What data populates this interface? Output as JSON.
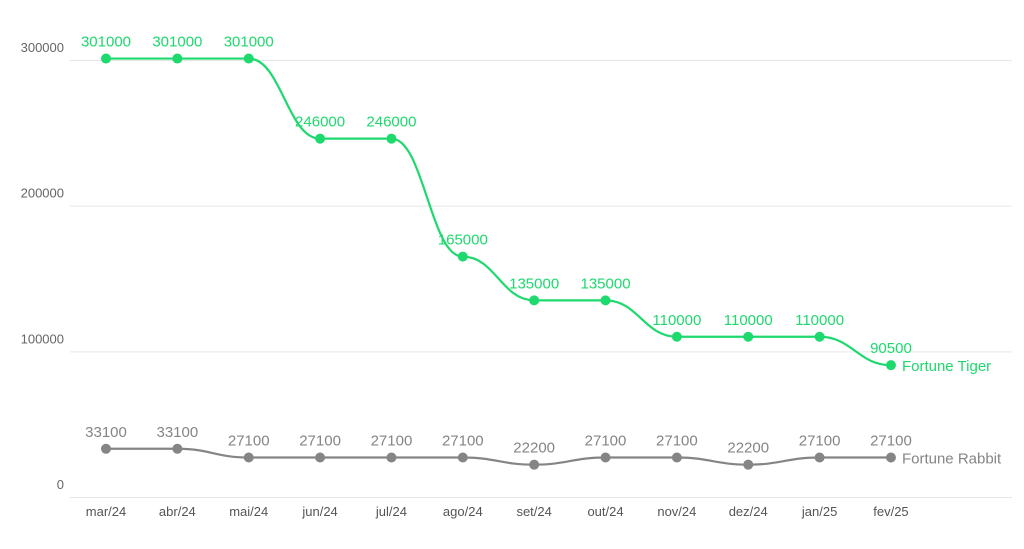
{
  "chart_data": {
    "type": "line",
    "title": "",
    "xlabel": "",
    "ylabel": "",
    "ylim": [
      0,
      300000
    ],
    "yticks": [
      "0",
      "100000",
      "200000",
      "300000"
    ],
    "categories": [
      "mar/24",
      "abr/24",
      "mai/24",
      "jun/24",
      "jul/24",
      "ago/24",
      "set/24",
      "out/24",
      "nov/24",
      "dez/24",
      "jan/25",
      "fev/25"
    ],
    "grid": true,
    "legend": "series names at right end of each line",
    "series": [
      {
        "name": "Fortune Tiger",
        "color": "#1ed96e",
        "values": [
          301000,
          301000,
          301000,
          246000,
          246000,
          165000,
          135000,
          135000,
          110000,
          110000,
          110000,
          90500
        ]
      },
      {
        "name": "Fortune Rabbit",
        "color": "#858585",
        "values": [
          33100,
          33100,
          27100,
          27100,
          27100,
          27100,
          22200,
          27100,
          27100,
          22200,
          27100,
          27100
        ]
      }
    ]
  }
}
